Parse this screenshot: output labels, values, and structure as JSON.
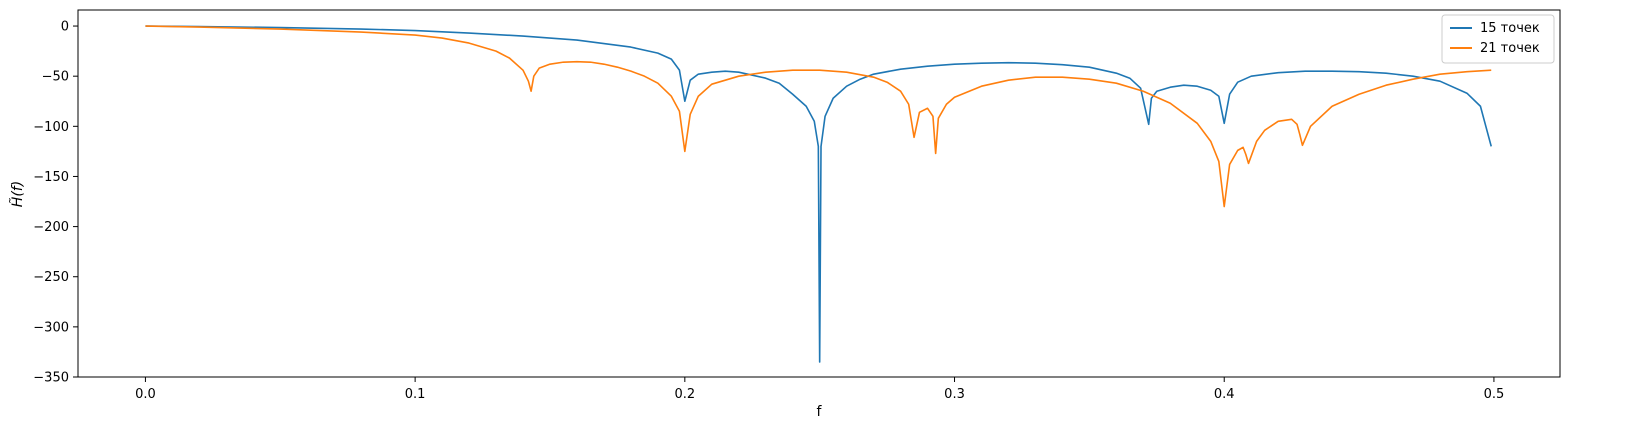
{
  "chart_data": {
    "type": "line",
    "xlabel": "f",
    "ylabel": "H̃(f)",
    "xlim": [
      -0.025,
      0.5245
    ],
    "ylim": [
      -350,
      16
    ],
    "xticks": [
      0.0,
      0.1,
      0.2,
      0.3,
      0.4,
      0.5
    ],
    "xtick_labels": [
      "0.0",
      "0.1",
      "0.2",
      "0.3",
      "0.4",
      "0.5"
    ],
    "yticks": [
      0,
      -50,
      -100,
      -150,
      -200,
      -250,
      -300,
      -350
    ],
    "ytick_labels": [
      "0",
      "−50",
      "−100",
      "−150",
      "−200",
      "−250",
      "−300",
      "−350"
    ],
    "grid": false,
    "legend_position": "top-right",
    "series": [
      {
        "name": "15 точек",
        "color": "#1f77b4",
        "x": [
          0.0,
          0.02,
          0.05,
          0.08,
          0.1,
          0.12,
          0.14,
          0.16,
          0.18,
          0.19,
          0.195,
          0.198,
          0.2,
          0.202,
          0.205,
          0.21,
          0.215,
          0.22,
          0.23,
          0.235,
          0.24,
          0.245,
          0.248,
          0.2495,
          0.25,
          0.2505,
          0.252,
          0.255,
          0.26,
          0.265,
          0.27,
          0.28,
          0.29,
          0.3,
          0.31,
          0.32,
          0.33,
          0.34,
          0.35,
          0.36,
          0.365,
          0.369,
          0.372,
          0.373,
          0.375,
          0.38,
          0.385,
          0.39,
          0.395,
          0.398,
          0.4,
          0.402,
          0.405,
          0.41,
          0.42,
          0.43,
          0.44,
          0.45,
          0.46,
          0.47,
          0.48,
          0.49,
          0.495,
          0.499
        ],
        "y": [
          0,
          -0.5,
          -1.5,
          -3,
          -4.5,
          -7,
          -10,
          -14,
          -21,
          -27,
          -33,
          -44,
          -75,
          -54,
          -48,
          -46,
          -45,
          -46,
          -52,
          -57,
          -68,
          -80,
          -95,
          -120,
          -335,
          -120,
          -90,
          -72,
          -60,
          -53,
          -48,
          -43,
          -40,
          -38,
          -37,
          -36.5,
          -37,
          -38.5,
          -41,
          -47,
          -52,
          -62,
          -98,
          -72,
          -65,
          -61,
          -59,
          -60,
          -64,
          -70,
          -97,
          -68,
          -56,
          -50,
          -46.5,
          -45,
          -45,
          -45.5,
          -47,
          -50,
          -55,
          -67,
          -80,
          -120
        ]
      },
      {
        "name": "21 точек",
        "color": "#ff7f0e",
        "x": [
          0.0,
          0.02,
          0.05,
          0.08,
          0.1,
          0.11,
          0.12,
          0.13,
          0.135,
          0.14,
          0.142,
          0.143,
          0.144,
          0.146,
          0.15,
          0.155,
          0.16,
          0.165,
          0.17,
          0.175,
          0.18,
          0.185,
          0.19,
          0.195,
          0.198,
          0.2,
          0.202,
          0.205,
          0.21,
          0.22,
          0.23,
          0.24,
          0.25,
          0.26,
          0.27,
          0.275,
          0.28,
          0.283,
          0.285,
          0.287,
          0.29,
          0.292,
          0.293,
          0.294,
          0.297,
          0.3,
          0.31,
          0.32,
          0.33,
          0.34,
          0.35,
          0.36,
          0.37,
          0.38,
          0.39,
          0.395,
          0.398,
          0.4,
          0.402,
          0.405,
          0.407,
          0.408,
          0.409,
          0.412,
          0.415,
          0.42,
          0.425,
          0.427,
          0.428,
          0.429,
          0.432,
          0.44,
          0.45,
          0.46,
          0.47,
          0.48,
          0.49,
          0.499
        ],
        "y": [
          0,
          -1,
          -3,
          -6,
          -9,
          -12,
          -17,
          -25,
          -32,
          -44,
          -55,
          -65,
          -50,
          -42,
          -38,
          -36,
          -35.5,
          -36,
          -38,
          -41,
          -45,
          -50,
          -57,
          -70,
          -85,
          -125,
          -88,
          -70,
          -58,
          -50,
          -46,
          -44,
          -44,
          -46,
          -51,
          -56,
          -65,
          -78,
          -111,
          -86,
          -82,
          -90,
          -127,
          -92,
          -78,
          -71,
          -60,
          -54,
          -51,
          -51,
          -53,
          -57,
          -65,
          -77,
          -97,
          -115,
          -135,
          -180,
          -138,
          -124,
          -121,
          -128,
          -137,
          -115,
          -104,
          -95,
          -93,
          -98,
          -108,
          -119,
          -100,
          -80,
          -68,
          -59,
          -53,
          -48,
          -45.5,
          -44
        ]
      }
    ]
  }
}
